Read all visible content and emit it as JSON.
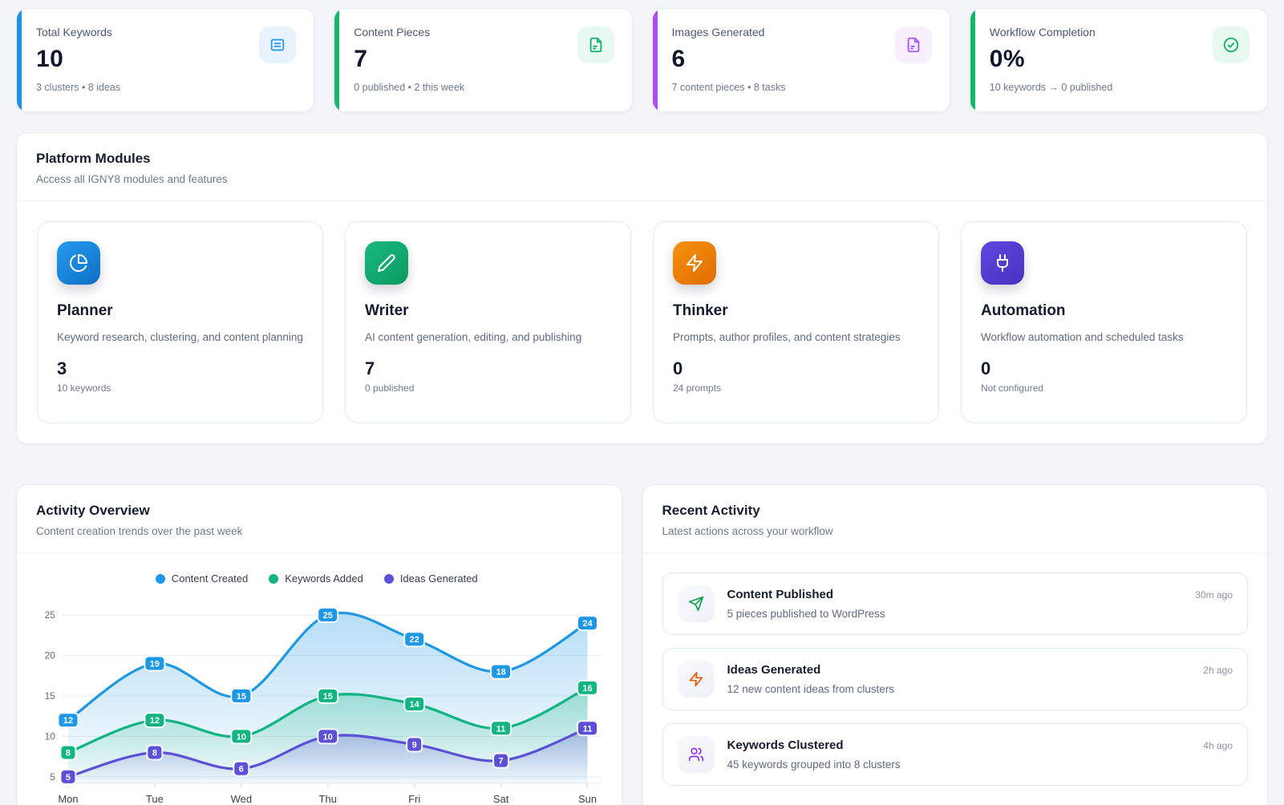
{
  "stats": [
    {
      "label": "Total Keywords",
      "value": "10",
      "sub": "3 clusters • 8 ideas",
      "accent": "#1b93e4",
      "icon": "list-icon",
      "icon_bg": "#e9f3fe",
      "icon_color": "#2b9af0"
    },
    {
      "label": "Content Pieces",
      "value": "7",
      "sub": "0 published • 2 this week",
      "accent": "#12b76a",
      "icon": "file-text-icon",
      "icon_bg": "#e8f9f0",
      "icon_color": "#16b070"
    },
    {
      "label": "Images Generated",
      "value": "6",
      "sub": "7 content pieces • 8 tasks",
      "accent": "#a94df5",
      "icon": "file-image-icon",
      "icon_bg": "#f7eefe",
      "icon_color": "#a855f7"
    },
    {
      "label": "Workflow Completion",
      "value": "0%",
      "sub": "10 keywords → 0 published",
      "accent": "#12b76a",
      "icon": "check-circle-icon",
      "icon_bg": "#e8f9f0",
      "icon_color": "#16b070"
    }
  ],
  "modules_section": {
    "title": "Platform Modules",
    "subtitle": "Access all IGNY8 modules and features",
    "modules": [
      {
        "name": "Planner",
        "desc": "Keyword research, clustering, and content planning",
        "stat": "3",
        "sub": "10 keywords",
        "icon": "pie-chart-icon",
        "gradient": "linear-gradient(140deg,#259bef 0%,#0e6fc5 100%)"
      },
      {
        "name": "Writer",
        "desc": "AI content generation, editing, and publishing",
        "stat": "7",
        "sub": "0 published",
        "icon": "pencil-icon",
        "gradient": "linear-gradient(140deg,#19b97e 0%,#0b9a62 100%)"
      },
      {
        "name": "Thinker",
        "desc": "Prompts, author profiles, and content strategies",
        "stat": "0",
        "sub": "24 prompts",
        "icon": "zap-icon",
        "gradient": "linear-gradient(140deg,#f6910c 0%,#e06d02 100%)"
      },
      {
        "name": "Automation",
        "desc": "Workflow automation and scheduled tasks",
        "stat": "0",
        "sub": "Not configured",
        "icon": "plug-icon",
        "gradient": "linear-gradient(140deg,#5d47dd 0%,#4634c2 100%)"
      }
    ]
  },
  "activity_overview": {
    "title": "Activity Overview",
    "subtitle": "Content creation trends over the past week"
  },
  "chart_data": {
    "type": "area",
    "x": [
      "Mon",
      "Tue",
      "Wed",
      "Thu",
      "Fri",
      "Sat",
      "Sun"
    ],
    "series": [
      {
        "name": "Content Created",
        "color": "#1e97e4",
        "values": [
          12,
          19,
          15,
          25,
          22,
          18,
          24
        ]
      },
      {
        "name": "Keywords Added",
        "color": "#12b581",
        "values": [
          8,
          12,
          10,
          15,
          14,
          11,
          16
        ]
      },
      {
        "name": "Ideas Generated",
        "color": "#5b50d6",
        "values": [
          5,
          8,
          6,
          10,
          9,
          7,
          11
        ]
      }
    ],
    "yticks": [
      5,
      10,
      15,
      20,
      25
    ],
    "ylim": [
      5,
      25
    ],
    "grid": true,
    "legend_position": "top",
    "point_labels": true,
    "xlabel": "",
    "ylabel": ""
  },
  "recent_activity": {
    "title": "Recent Activity",
    "subtitle": "Latest actions across your workflow",
    "items": [
      {
        "title": "Content Published",
        "desc": "5 pieces published to WordPress",
        "time": "30m ago",
        "icon": "send-icon",
        "icon_color": "#16a34a"
      },
      {
        "title": "Ideas Generated",
        "desc": "12 new content ideas from clusters",
        "time": "2h ago",
        "icon": "zap-icon",
        "icon_color": "#ea580c"
      },
      {
        "title": "Keywords Clustered",
        "desc": "45 keywords grouped into 8 clusters",
        "time": "4h ago",
        "icon": "users-icon",
        "icon_color": "#9333ea"
      }
    ]
  }
}
